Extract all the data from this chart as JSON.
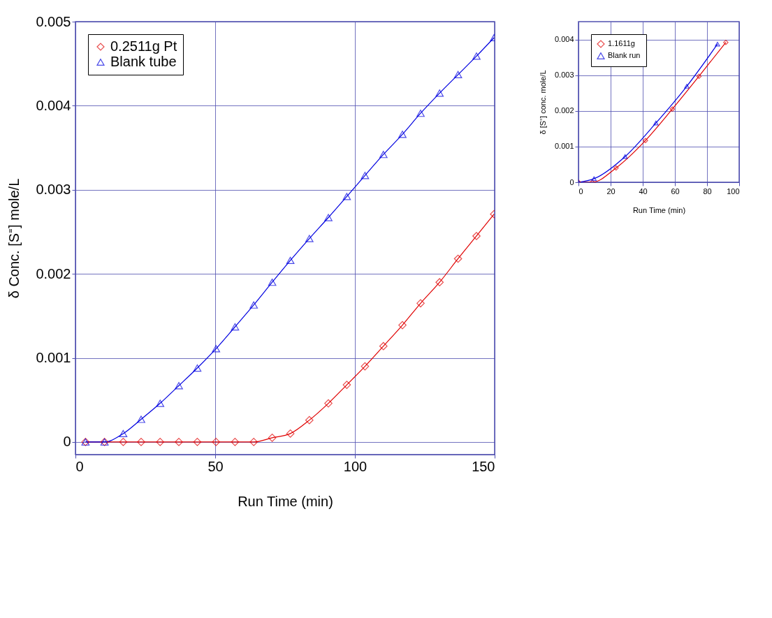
{
  "chart_data": [
    {
      "type": "line",
      "xlabel": "Run Time (min)",
      "ylabel": "δ Conc. [S⁼] mole/L",
      "xlim": [
        0,
        150
      ],
      "ylim": [
        -0.00015,
        0.005
      ],
      "xticks": [
        0,
        50,
        100,
        150
      ],
      "yticks": [
        0,
        0.001,
        0.002,
        0.003,
        0.004,
        0.005
      ],
      "grid": true,
      "legend": "top left",
      "series": [
        {
          "name": "0.2511g Pt",
          "color": "#e00000",
          "marker": "diamond",
          "x": [
            3.6,
            10.4,
            17.1,
            23.5,
            30.3,
            37.0,
            43.6,
            50.3,
            57.1,
            63.8,
            70.4,
            76.9,
            83.7,
            90.5,
            97.1,
            103.6,
            110.2,
            117.0,
            123.5,
            130.3,
            136.9,
            143.5,
            149.8
          ],
          "values": [
            0,
            0,
            0,
            0,
            0,
            0,
            0,
            0,
            0,
            0,
            5e-05,
            0.0001,
            0.00026,
            0.00046,
            0.00068,
            0.0009,
            0.00114,
            0.00139,
            0.00165,
            0.0019,
            0.00218,
            0.00245,
            0.00271
          ]
        },
        {
          "name": "Blank tube",
          "color": "#0000e0",
          "marker": "triangle",
          "x": [
            3.6,
            10.4,
            17.1,
            23.5,
            30.3,
            37.0,
            43.6,
            50.3,
            57.1,
            63.8,
            70.4,
            76.9,
            83.7,
            90.5,
            97.1,
            103.6,
            110.2,
            117.0,
            123.5,
            130.3,
            136.9,
            143.5,
            149.8
          ],
          "values": [
            0,
            0,
            0.0001,
            0.00027,
            0.00046,
            0.00067,
            0.00088,
            0.00111,
            0.00137,
            0.00163,
            0.0019,
            0.00216,
            0.00242,
            0.00267,
            0.00292,
            0.00317,
            0.00342,
            0.00366,
            0.00391,
            0.00415,
            0.00437,
            0.00459,
            0.00481
          ]
        }
      ]
    },
    {
      "type": "line",
      "xlabel": "Run Time (min)",
      "ylabel": "δ [S⁼] conc. mole/L",
      "xlim": [
        0,
        100
      ],
      "ylim": [
        0,
        0.0045
      ],
      "xticks": [
        0,
        20,
        40,
        60,
        80,
        100
      ],
      "yticks": [
        0,
        0.001,
        0.002,
        0.003,
        0.004
      ],
      "grid": true,
      "legend": "top left",
      "series": [
        {
          "name": "1.1611g",
          "color": "#e00000",
          "marker": "diamond",
          "x": [
            0,
            8.6,
            23.4,
            41.7,
            58.4,
            75.0,
            91.7
          ],
          "values": [
            0,
            0,
            0.0004,
            0.00117,
            0.00205,
            0.00297,
            0.00392
          ]
        },
        {
          "name": "Blank run",
          "color": "#0000e0",
          "marker": "triangle",
          "x": [
            0,
            9.7,
            29.0,
            48.2,
            67.4,
            86.5
          ],
          "values": [
            0,
            0.0001,
            0.00072,
            0.00166,
            0.00269,
            0.00387
          ]
        }
      ]
    }
  ]
}
